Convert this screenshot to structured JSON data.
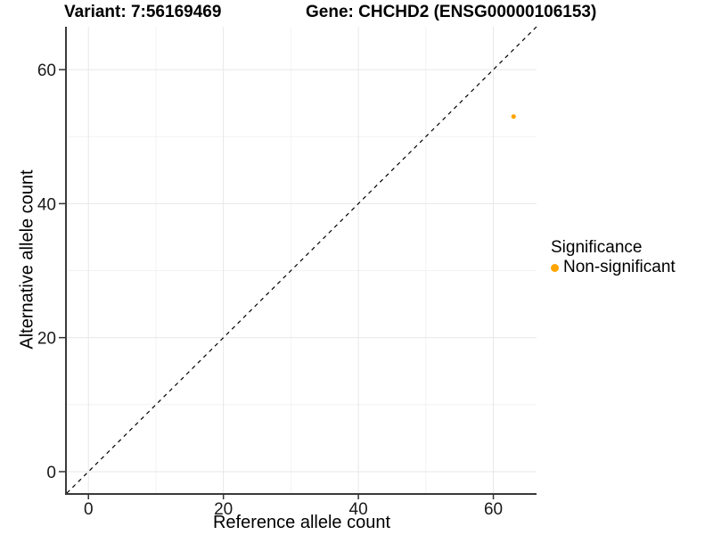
{
  "titles": {
    "variant": "Variant: 7:56169469",
    "gene": "Gene: CHCHD2 (ENSG00000106153)"
  },
  "colors": {
    "point": "#FFA500",
    "axis_line": "#3a3a3a",
    "tick": "#333333",
    "tick_label": "#1a1a1a",
    "grid_major": "#e7e7e7",
    "grid_minor": "#f2f2f2",
    "reference_line": "#000000",
    "background": "#ffffff"
  },
  "chart_data": {
    "type": "scatter",
    "title_left": "Variant: 7:56169469",
    "title_right": "Gene: CHCHD2 (ENSG00000106153)",
    "xlabel": "Reference allele count",
    "ylabel": "Alternative allele count",
    "xlim": [
      -3.2,
      66.4
    ],
    "ylim": [
      -3.2,
      66.4
    ],
    "x_ticks": [
      0,
      20,
      40,
      60
    ],
    "y_ticks": [
      0,
      20,
      40,
      60
    ],
    "x_minor_ticks": [
      10,
      30,
      50
    ],
    "y_minor_ticks": [
      10,
      30,
      50
    ],
    "grid": "major and minor, light grey on white",
    "reference_line": {
      "style": "dashed",
      "slope": 1,
      "intercept": 0,
      "from": [
        -3.2,
        -3.2
      ],
      "to": [
        66.4,
        66.4
      ]
    },
    "series": [
      {
        "name": "Non-significant",
        "color": "#FFA500",
        "points": [
          {
            "x": 63,
            "y": 53
          }
        ],
        "point_radius": 2.6
      }
    ],
    "legend": {
      "title": "Significance",
      "position": "right",
      "items": [
        {
          "label": "Non-significant",
          "color": "#FFA500"
        }
      ]
    }
  }
}
